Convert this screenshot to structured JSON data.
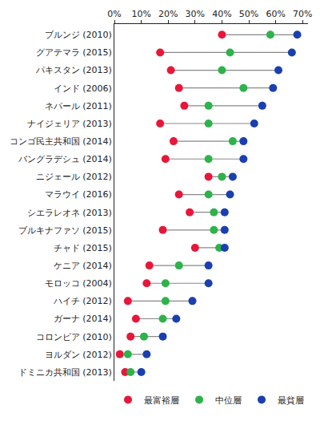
{
  "chart_data": {
    "type": "dumbbell",
    "orientation": "horizontal",
    "categories": [
      "ブルンジ (2010)",
      "グアテマラ (2015)",
      "パキスタン (2013)",
      "インド (2006)",
      "ネパール (2011)",
      "ナイジェリア (2013)",
      "コンゴ民主共和国 (2014)",
      "バングラデシュ (2014)",
      "ニジェール (2012)",
      "マラウイ (2016)",
      "シエラレオネ (2013)",
      "ブルキナファソ (2015)",
      "チャド (2015)",
      "ケニア (2014)",
      "モロッコ (2004)",
      "ハイチ (2012)",
      "ガーナ (2014)",
      "コロンビア (2010)",
      "ヨルダン (2012)",
      "ドミニカ共和国 (2013)"
    ],
    "series": [
      {
        "name": "最富裕層",
        "color": "#e8173a",
        "marker": "circle",
        "values": [
          40,
          17,
          21,
          24,
          26,
          17,
          22,
          19,
          35,
          24,
          28,
          18,
          30,
          13,
          12,
          5,
          8,
          6,
          2,
          4
        ]
      },
      {
        "name": "中位層",
        "color": "#2db34a",
        "marker": "circle",
        "values": [
          58,
          43,
          40,
          48,
          35,
          35,
          44,
          35,
          40,
          35,
          37,
          37,
          39,
          24,
          19,
          19,
          18,
          11,
          5,
          6
        ]
      },
      {
        "name": "最貧層",
        "color": "#1a3fb0",
        "marker": "circle",
        "values": [
          68,
          66,
          61,
          59,
          55,
          52,
          48,
          48,
          44,
          43,
          41,
          41,
          41,
          35,
          35,
          29,
          23,
          18,
          12,
          10
        ]
      }
    ],
    "xlim": [
      0,
      72
    ],
    "xticks": [
      {
        "value": 0,
        "label": "0%"
      },
      {
        "value": 10,
        "label": "10%"
      },
      {
        "value": 20,
        "label": "20%"
      },
      {
        "value": 30,
        "label": "30%"
      },
      {
        "value": 40,
        "label": "40%"
      },
      {
        "value": 50,
        "label": "50%"
      },
      {
        "value": 60,
        "label": "60%"
      },
      {
        "value": 70,
        "label": "70%"
      }
    ],
    "grid": false,
    "legend": "bottom"
  }
}
